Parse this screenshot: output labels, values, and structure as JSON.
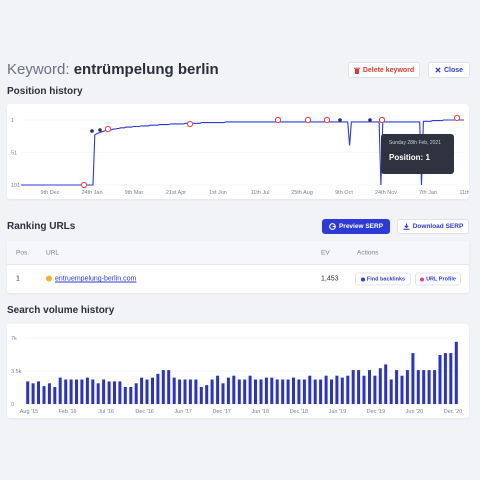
{
  "header": {
    "title_prefix": "Keyword: ",
    "keyword": "entrümpelung berlin",
    "delete_label": "Delete keyword",
    "close_label": "Close"
  },
  "position_history": {
    "title": "Position history",
    "chart_data": {
      "type": "line",
      "y_ticks": [
        "1",
        "51",
        "101"
      ],
      "x_ticks": [
        "9th Dec",
        "24th Jan",
        "9th Mar",
        "21st Apr",
        "1st Jun",
        "11th Jul",
        "25th Aug",
        "9th Oct",
        "24th Nov",
        "7th Jan",
        "11th Mar"
      ],
      "ylim": [
        101,
        1
      ],
      "series": [
        {
          "values": [
            101,
            101,
            101,
            101,
            101,
            101,
            101,
            101,
            101,
            101,
            101,
            101,
            101,
            101,
            101,
            101,
            101,
            101,
            101,
            101,
            101,
            101,
            101,
            101,
            101,
            101,
            101,
            101,
            101,
            101,
            101,
            101,
            101,
            101,
            101,
            101,
            101,
            101,
            101,
            101,
            24,
            22,
            21,
            20,
            19,
            18,
            17,
            17,
            16,
            16,
            15,
            15,
            14,
            14,
            13,
            13,
            13,
            12,
            12,
            12,
            12,
            11,
            11,
            11,
            11,
            10,
            10,
            10,
            10,
            10,
            9,
            9,
            9,
            9,
            9,
            8,
            8,
            8,
            8,
            8,
            8,
            7,
            7,
            7,
            7,
            7,
            7,
            7,
            7,
            6,
            6,
            6,
            6,
            6,
            6,
            6,
            6,
            6,
            5,
            5,
            5,
            5,
            5,
            5,
            5,
            5,
            5,
            5,
            5,
            5,
            5,
            4,
            4,
            4,
            4,
            4,
            4,
            4,
            4,
            4,
            4,
            4,
            4,
            4,
            4,
            4,
            4,
            4,
            4,
            4,
            4,
            4,
            4,
            4,
            4,
            4,
            4,
            4,
            4,
            4,
            4,
            4,
            4,
            4,
            4,
            4,
            4,
            4,
            4,
            4,
            4,
            4,
            4,
            4,
            4,
            4,
            4,
            4,
            4,
            4,
            4,
            4,
            4,
            4,
            4,
            4,
            4,
            4,
            4,
            4,
            4,
            4,
            4,
            4,
            4,
            4,
            4,
            4,
            40,
            4,
            4,
            4,
            4,
            4,
            4,
            4,
            4,
            4,
            4,
            4,
            4,
            4,
            4,
            4,
            4,
            101,
            4,
            4,
            4,
            4,
            4,
            4,
            4,
            4,
            4,
            4,
            4,
            4,
            4,
            4,
            4,
            4,
            4,
            4,
            4,
            4,
            4,
            101,
            3,
            3,
            3,
            3,
            3,
            2,
            2,
            2,
            2,
            2,
            2,
            1,
            1,
            1,
            1,
            1,
            1,
            1,
            1,
            1,
            1,
            1,
            1
          ]
        }
      ]
    },
    "tooltip": {
      "date": "Sunday 28th Feb, 2021",
      "position": "Position: 1"
    }
  },
  "ranking_urls": {
    "title": "Ranking URLs",
    "preview_label": "Preview SERP",
    "download_label": "Download SERP",
    "columns": {
      "pos": "Pos.",
      "url": "URL",
      "ev": "EV",
      "actions": "Actions"
    },
    "rows": [
      {
        "pos": "1",
        "url": "entruempelung-berlin.com",
        "ev": "1,453",
        "backlinks": "Find backlinks",
        "profile": "URL Profile"
      }
    ]
  },
  "search_volume": {
    "title": "Search volume history",
    "chart_data": {
      "type": "bar",
      "y_ticks": [
        "7k",
        "3.5k",
        "0"
      ],
      "x_ticks": [
        "Aug '15",
        "Feb '16",
        "Jul '16",
        "Dec '16",
        "Jun '17",
        "Dec '17",
        "Jun '18",
        "Dec '18",
        "Jun '19",
        "Dec '19",
        "Jun '20",
        "Dec '20"
      ],
      "ylim": [
        0,
        7000
      ],
      "values": [
        2400,
        2200,
        2400,
        1900,
        2200,
        1800,
        2800,
        2600,
        2600,
        2600,
        2600,
        2800,
        2600,
        2200,
        2600,
        2400,
        2400,
        2400,
        1800,
        1800,
        2200,
        2800,
        2600,
        2800,
        3200,
        3600,
        3600,
        2800,
        2600,
        2600,
        2600,
        2600,
        1800,
        2000,
        2600,
        3000,
        2200,
        2800,
        3000,
        2600,
        2600,
        3000,
        2600,
        2600,
        2800,
        2800,
        2600,
        2600,
        2600,
        2800,
        2600,
        2600,
        3000,
        2600,
        2600,
        3000,
        2600,
        3000,
        2800,
        3000,
        3600,
        3600,
        3000,
        3600,
        3000,
        3800,
        4200,
        2600,
        3600,
        3000,
        3600,
        5400,
        3600,
        3600,
        3600,
        3600,
        5200,
        5400,
        5400,
        6600
      ]
    }
  },
  "colors": {
    "accent": "#2d3bd6",
    "danger": "#d93b2f",
    "bar": "#2a33c8"
  }
}
